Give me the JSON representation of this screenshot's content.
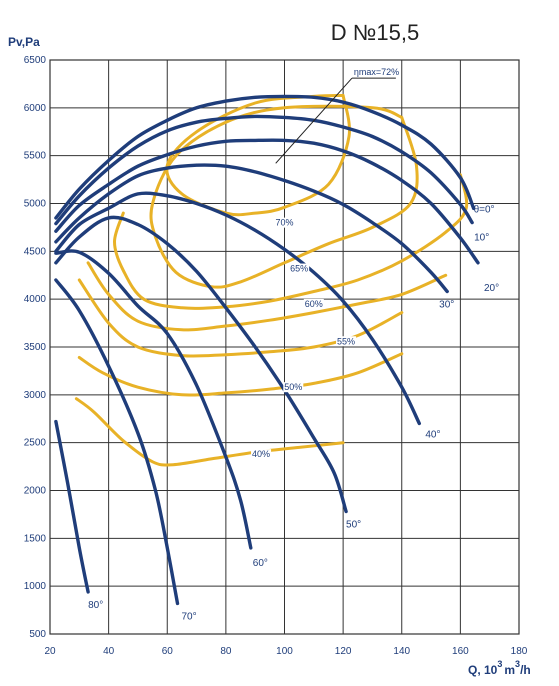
{
  "chart_data": {
    "type": "line",
    "title": "D №15,5",
    "ylabel": "Pv,Pa",
    "xlabel": "Q, 10",
    "xlabel_sup1": "3",
    "xlabel_unit": "m",
    "xlabel_sup2": "3",
    "xlabel_tail": "/h",
    "xlim": [
      20,
      180
    ],
    "ylim": [
      500,
      6500
    ],
    "xticks": [
      20,
      40,
      60,
      80,
      100,
      120,
      140,
      160,
      180
    ],
    "yticks": [
      500,
      1000,
      1500,
      2000,
      2500,
      3000,
      3500,
      4000,
      4500,
      5000,
      5500,
      6000,
      6500
    ],
    "grid": true,
    "colors": {
      "angle_curve": "#1f3d7a",
      "efficiency_curve": "#e8b227",
      "grid": "#333333"
    },
    "angle_curves": [
      {
        "label": "θ=0°",
        "points": [
          [
            22,
            4850
          ],
          [
            30,
            5150
          ],
          [
            40,
            5450
          ],
          [
            50,
            5700
          ],
          [
            60,
            5870
          ],
          [
            70,
            6000
          ],
          [
            80,
            6070
          ],
          [
            90,
            6110
          ],
          [
            100,
            6120
          ],
          [
            110,
            6110
          ],
          [
            120,
            6060
          ],
          [
            130,
            5960
          ],
          [
            140,
            5820
          ],
          [
            150,
            5620
          ],
          [
            160,
            5270
          ],
          [
            164.5,
            4950
          ]
        ]
      },
      {
        "label": "10°",
        "points": [
          [
            22,
            4790
          ],
          [
            30,
            5080
          ],
          [
            40,
            5370
          ],
          [
            50,
            5600
          ],
          [
            60,
            5760
          ],
          [
            70,
            5850
          ],
          [
            80,
            5890
          ],
          [
            90,
            5910
          ],
          [
            100,
            5900
          ],
          [
            110,
            5870
          ],
          [
            120,
            5800
          ],
          [
            130,
            5700
          ],
          [
            140,
            5540
          ],
          [
            150,
            5320
          ],
          [
            160,
            4990
          ],
          [
            164,
            4800
          ]
        ]
      },
      {
        "label": "20°",
        "points": [
          [
            22,
            4710
          ],
          [
            30,
            4980
          ],
          [
            40,
            5200
          ],
          [
            50,
            5390
          ],
          [
            60,
            5510
          ],
          [
            70,
            5600
          ],
          [
            80,
            5650
          ],
          [
            90,
            5660
          ],
          [
            100,
            5660
          ],
          [
            110,
            5630
          ],
          [
            120,
            5550
          ],
          [
            130,
            5420
          ],
          [
            140,
            5240
          ],
          [
            150,
            5000
          ],
          [
            160,
            4640
          ],
          [
            166,
            4380
          ]
        ]
      },
      {
        "label": "30°",
        "points": [
          [
            22,
            4600
          ],
          [
            30,
            4850
          ],
          [
            40,
            5100
          ],
          [
            50,
            5290
          ],
          [
            60,
            5370
          ],
          [
            70,
            5400
          ],
          [
            80,
            5390
          ],
          [
            90,
            5330
          ],
          [
            100,
            5240
          ],
          [
            110,
            5130
          ],
          [
            120,
            4990
          ],
          [
            130,
            4800
          ],
          [
            140,
            4580
          ],
          [
            150,
            4280
          ],
          [
            155.5,
            4080
          ]
        ]
      },
      {
        "label": "40°",
        "points": [
          [
            22,
            4500
          ],
          [
            30,
            4780
          ],
          [
            40,
            4950
          ],
          [
            50,
            5100
          ],
          [
            60,
            5080
          ],
          [
            70,
            5000
          ],
          [
            80,
            4880
          ],
          [
            90,
            4720
          ],
          [
            100,
            4520
          ],
          [
            110,
            4280
          ],
          [
            120,
            3980
          ],
          [
            130,
            3580
          ],
          [
            140,
            3080
          ],
          [
            146,
            2700
          ]
        ]
      },
      {
        "label": "50°",
        "points": [
          [
            22,
            4380
          ],
          [
            30,
            4650
          ],
          [
            40,
            4850
          ],
          [
            50,
            4780
          ],
          [
            60,
            4580
          ],
          [
            70,
            4290
          ],
          [
            80,
            3910
          ],
          [
            90,
            3500
          ],
          [
            100,
            3050
          ],
          [
            110,
            2550
          ],
          [
            117,
            2180
          ],
          [
            121,
            1780
          ]
        ]
      },
      {
        "label": "60°",
        "points": [
          [
            22,
            4480
          ],
          [
            30,
            4490
          ],
          [
            40,
            4270
          ],
          [
            50,
            3930
          ],
          [
            60,
            3640
          ],
          [
            70,
            3100
          ],
          [
            80,
            2350
          ],
          [
            85,
            1900
          ],
          [
            88.5,
            1400
          ]
        ]
      },
      {
        "label": "70°",
        "points": [
          [
            22,
            4200
          ],
          [
            30,
            3880
          ],
          [
            40,
            3300
          ],
          [
            50,
            2600
          ],
          [
            56,
            2000
          ],
          [
            60,
            1400
          ],
          [
            63.5,
            820
          ]
        ]
      },
      {
        "label": "80°",
        "points": [
          [
            22,
            2720
          ],
          [
            26,
            2080
          ],
          [
            30,
            1400
          ],
          [
            33,
            940
          ]
        ]
      }
    ],
    "efficiency_curves": [
      {
        "label": "ηmax=72%",
        "points": [
          [
            120,
            6130
          ],
          [
            122,
            5700
          ],
          [
            115,
            5200
          ],
          [
            100,
            4960
          ],
          [
            90,
            4900
          ],
          [
            80,
            4900
          ],
          [
            65,
            5100
          ],
          [
            60,
            5400
          ],
          [
            70,
            5750
          ],
          [
            90,
            6050
          ],
          [
            110,
            6120
          ],
          [
            120,
            6130
          ]
        ]
      },
      {
        "label": "70%",
        "points": [
          [
            140,
            5900
          ],
          [
            145,
            5400
          ],
          [
            143,
            5000
          ],
          [
            130,
            4750
          ],
          [
            115,
            4580
          ],
          [
            100,
            4380
          ],
          [
            85,
            4180
          ],
          [
            75,
            4130
          ],
          [
            63,
            4280
          ],
          [
            56,
            4650
          ],
          [
            55,
            5000
          ],
          [
            63,
            5500
          ],
          [
            80,
            5850
          ],
          [
            100,
            6000
          ],
          [
            130,
            6000
          ],
          [
            140,
            5900
          ]
        ]
      },
      {
        "label": "65%",
        "points": [
          [
            160,
            5300
          ],
          [
            162,
            4950
          ],
          [
            155,
            4700
          ],
          [
            140,
            4400
          ],
          [
            125,
            4200
          ],
          [
            110,
            4080
          ],
          [
            95,
            3980
          ],
          [
            80,
            3920
          ],
          [
            65,
            3910
          ],
          [
            52,
            4000
          ],
          [
            45,
            4300
          ],
          [
            42,
            4600
          ],
          [
            45,
            4900
          ]
        ]
      },
      {
        "label": "60%",
        "points": [
          [
            155,
            4250
          ],
          [
            140,
            4050
          ],
          [
            125,
            3950
          ],
          [
            110,
            3860
          ],
          [
            95,
            3780
          ],
          [
            80,
            3720
          ],
          [
            65,
            3680
          ],
          [
            50,
            3770
          ],
          [
            40,
            4050
          ],
          [
            33,
            4380
          ]
        ]
      },
      {
        "label": "55%",
        "points": [
          [
            140,
            3860
          ],
          [
            125,
            3620
          ],
          [
            110,
            3500
          ],
          [
            95,
            3450
          ],
          [
            80,
            3420
          ],
          [
            65,
            3410
          ],
          [
            50,
            3500
          ],
          [
            40,
            3750
          ],
          [
            30,
            4200
          ]
        ]
      },
      {
        "label": "50%",
        "points": [
          [
            140,
            3430
          ],
          [
            125,
            3230
          ],
          [
            110,
            3120
          ],
          [
            95,
            3060
          ],
          [
            80,
            3020
          ],
          [
            65,
            3000
          ],
          [
            50,
            3080
          ],
          [
            38,
            3230
          ],
          [
            30,
            3390
          ]
        ]
      },
      {
        "label": "40%",
        "points": [
          [
            120,
            2500
          ],
          [
            105,
            2450
          ],
          [
            90,
            2400
          ],
          [
            75,
            2330
          ],
          [
            62,
            2270
          ],
          [
            55,
            2300
          ],
          [
            45,
            2520
          ],
          [
            35,
            2820
          ],
          [
            29,
            2960
          ]
        ]
      }
    ]
  }
}
